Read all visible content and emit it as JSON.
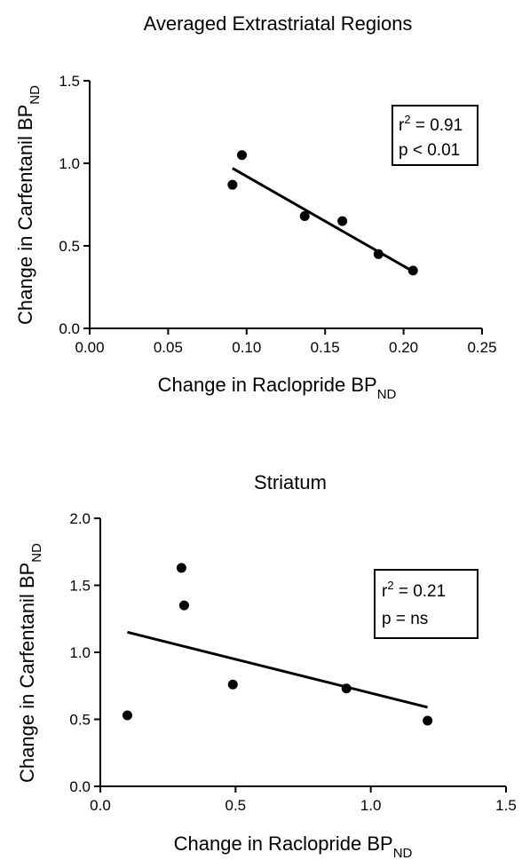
{
  "colors": {
    "background": "#ffffff",
    "ink": "#000000"
  },
  "chart_data": [
    {
      "type": "scatter",
      "title": "Averaged Extrastriatal Regions",
      "xlabel": {
        "main": "Change in Raclopride BP",
        "sub": "ND"
      },
      "ylabel": {
        "main": "Change in Carfentanil BP",
        "sub": "ND"
      },
      "xlim": [
        0,
        0.25
      ],
      "ylim": [
        0,
        1.5
      ],
      "x_ticks": [
        0,
        0.05,
        0.1,
        0.15,
        0.2,
        0.25
      ],
      "x_tick_labels": [
        "0.00",
        "0.05",
        "0.10",
        "0.15",
        "0.20",
        "0.25"
      ],
      "y_ticks": [
        0,
        0.5,
        1.0,
        1.5
      ],
      "y_tick_labels": [
        "0.0",
        "0.5",
        "1.0",
        "1.5"
      ],
      "points": [
        {
          "x": 0.091,
          "y": 0.87
        },
        {
          "x": 0.097,
          "y": 1.05
        },
        {
          "x": 0.137,
          "y": 0.68
        },
        {
          "x": 0.161,
          "y": 0.65
        },
        {
          "x": 0.184,
          "y": 0.45
        },
        {
          "x": 0.206,
          "y": 0.35
        }
      ],
      "fit_line": [
        {
          "x": 0.091,
          "y": 0.97
        },
        {
          "x": 0.206,
          "y": 0.345
        }
      ],
      "annotation": {
        "r2_prefix": "r",
        "r2_sup": "2",
        "r2_value": " = 0.91",
        "p_text": "p < 0.01"
      },
      "grid": false,
      "legend": "none"
    },
    {
      "type": "scatter",
      "title": "Striatum",
      "xlabel": {
        "main": "Change in Raclopride BP",
        "sub": "ND"
      },
      "ylabel": {
        "main": "Change in Carfentanil BP",
        "sub": "ND"
      },
      "xlim": [
        0,
        1.5
      ],
      "ylim": [
        0,
        2.0
      ],
      "x_ticks": [
        0,
        0.5,
        1.0,
        1.5
      ],
      "x_tick_labels": [
        "0.0",
        "0.5",
        "1.0",
        "1.5"
      ],
      "y_ticks": [
        0,
        0.5,
        1.0,
        1.5,
        2.0
      ],
      "y_tick_labels": [
        "0.0",
        "0.5",
        "1.0",
        "1.5",
        "2.0"
      ],
      "points": [
        {
          "x": 0.1,
          "y": 0.53
        },
        {
          "x": 0.3,
          "y": 1.63
        },
        {
          "x": 0.31,
          "y": 1.35
        },
        {
          "x": 0.49,
          "y": 0.76
        },
        {
          "x": 0.91,
          "y": 0.73
        },
        {
          "x": 1.21,
          "y": 0.49
        }
      ],
      "fit_line": [
        {
          "x": 0.1,
          "y": 1.15
        },
        {
          "x": 1.21,
          "y": 0.59
        }
      ],
      "annotation": {
        "r2_prefix": "r",
        "r2_sup": "2",
        "r2_value": " = 0.21",
        "p_text": "p = ns"
      },
      "grid": false,
      "legend": "none"
    }
  ]
}
